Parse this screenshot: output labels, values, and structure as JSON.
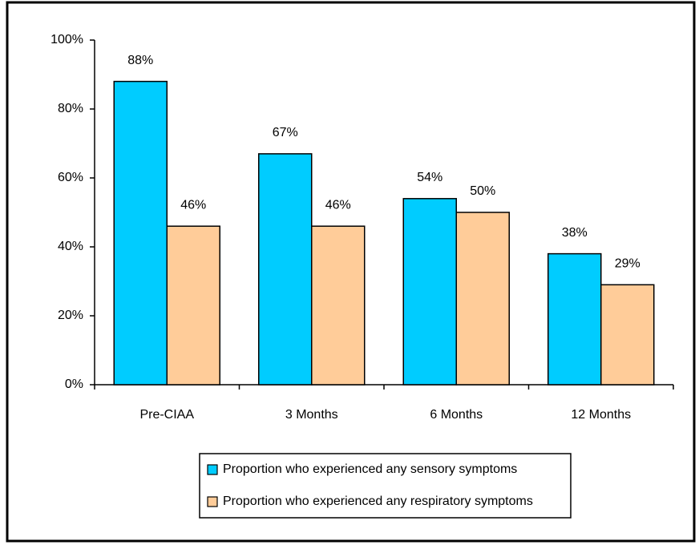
{
  "chart_data": {
    "type": "bar",
    "categories": [
      "Pre-CIAA",
      "3 Months",
      "6 Months",
      "12 Months"
    ],
    "series": [
      {
        "name": "Proportion who experienced any sensory symptoms",
        "color": "#00ccff",
        "values": [
          88,
          67,
          54,
          38
        ],
        "value_labels": [
          "88%",
          "67%",
          "54%",
          "38%"
        ]
      },
      {
        "name": "Proportion who experienced any respiratory symptoms",
        "color": "#ffcc99",
        "values": [
          46,
          46,
          50,
          29
        ],
        "value_labels": [
          "46%",
          "46%",
          "50%",
          "29%"
        ]
      }
    ],
    "ylim": [
      0,
      100
    ],
    "yticks": [
      {
        "value": 0,
        "label": "0%"
      },
      {
        "value": 20,
        "label": "20%"
      },
      {
        "value": 40,
        "label": "40%"
      },
      {
        "value": 60,
        "label": "60%"
      },
      {
        "value": 80,
        "label": "80%"
      },
      {
        "value": 100,
        "label": "100%"
      }
    ],
    "grid": false
  }
}
